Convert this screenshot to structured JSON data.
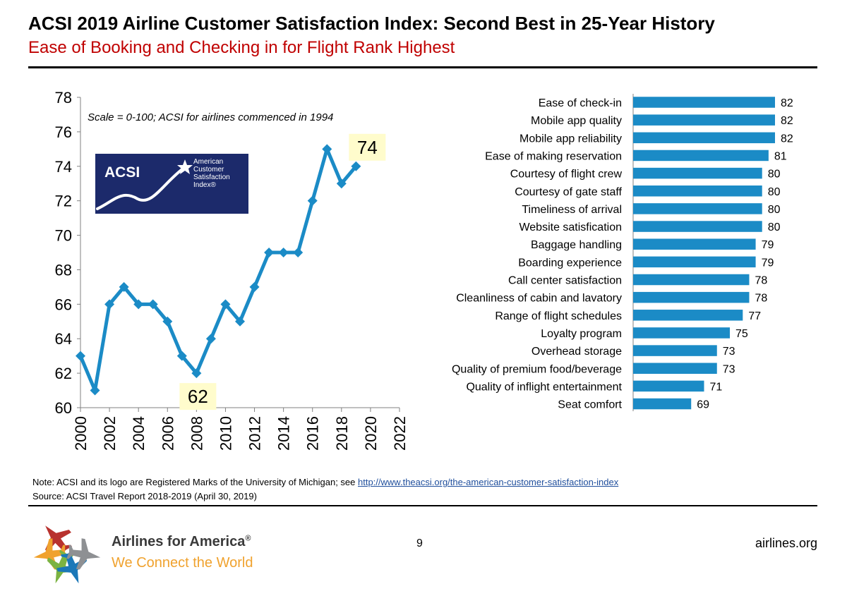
{
  "header": {
    "title": "ACSI 2019 Airline Customer Satisfaction Index: Second Best in 25-Year History",
    "subtitle": "Ease of Booking and Checking in for Flight Rank Highest"
  },
  "colors": {
    "accent_red": "#c00000",
    "bar_blue": "#1b8bc6",
    "line_blue": "#1b8bc6",
    "callout_yellow": "#fffccc",
    "acsi_navy": "#1c2a6b",
    "tagline_orange": "#f0a22e"
  },
  "chart_data": [
    {
      "type": "line",
      "x": [
        2000,
        2001,
        2002,
        2003,
        2004,
        2005,
        2006,
        2007,
        2008,
        2009,
        2010,
        2011,
        2012,
        2013,
        2014,
        2015,
        2016,
        2017,
        2018,
        2019
      ],
      "series": [
        {
          "values": [
            63,
            61,
            66,
            67,
            66,
            66,
            65,
            63,
            62,
            64,
            66,
            65,
            67,
            69,
            69,
            69,
            72,
            75,
            73,
            74
          ]
        }
      ],
      "xlim": [
        2000,
        2022
      ],
      "ylim": [
        60,
        78
      ],
      "yticks": [
        "60",
        "62",
        "64",
        "66",
        "68",
        "70",
        "72",
        "74",
        "76",
        "78"
      ],
      "xticks": [
        "2000",
        "2002",
        "2004",
        "2006",
        "2008",
        "2010",
        "2012",
        "2014",
        "2016",
        "2018",
        "2020",
        "2022"
      ],
      "annotation": "Scale = 0-100; ACSI for airlines commenced in 1994",
      "callouts": [
        {
          "x": 2008,
          "y": 62,
          "label": "62"
        },
        {
          "x": 2019,
          "y": 74,
          "label": "74"
        }
      ],
      "grid": false,
      "logo": {
        "name": "acsi-logo",
        "abbr": "ACSI",
        "lines": [
          "American",
          "Customer",
          "Satisfaction",
          "Index®"
        ]
      }
    },
    {
      "type": "bar",
      "orientation": "horizontal",
      "categories": [
        "Ease of check-in",
        "Mobile app quality",
        "Mobile app reliability",
        "Ease of making reservation",
        "Courtesy of flight crew",
        "Courtesy of gate staff",
        "Timeliness of arrival",
        "Website satisfication",
        "Baggage handling",
        "Boarding experience",
        "Call center satisfaction",
        "Cleanliness of cabin and lavatory",
        "Range of flight schedules",
        "Loyalty program",
        "Overhead storage",
        "Quality of premium food/beverage",
        "Quality of inflight entertainment",
        "Seat comfort"
      ],
      "values": [
        82,
        82,
        82,
        81,
        80,
        80,
        80,
        80,
        79,
        79,
        78,
        78,
        77,
        75,
        73,
        73,
        71,
        69
      ],
      "data_labels": [
        "82",
        "82",
        "82",
        "81",
        "80",
        "80",
        "80",
        "80",
        "79",
        "79",
        "78",
        "78",
        "77",
        "75",
        "73",
        "73",
        "71",
        "69"
      ],
      "xlim": [
        60,
        90
      ]
    }
  ],
  "footer": {
    "note_prefix": "Note: ACSI and its logo are Registered Marks of the University of Michigan; see ",
    "note_link": "http://www.theacsi.org/the-american-customer-satisfaction-index",
    "source": "Source: ACSI Travel Report 2018-2019 (April 30, 2019)",
    "page_number": "9",
    "website": "airlines.org",
    "org_name": "Airlines for America",
    "org_mark": "®",
    "tagline": "We Connect the World",
    "logo_icon": "airplane-starburst-logo"
  }
}
